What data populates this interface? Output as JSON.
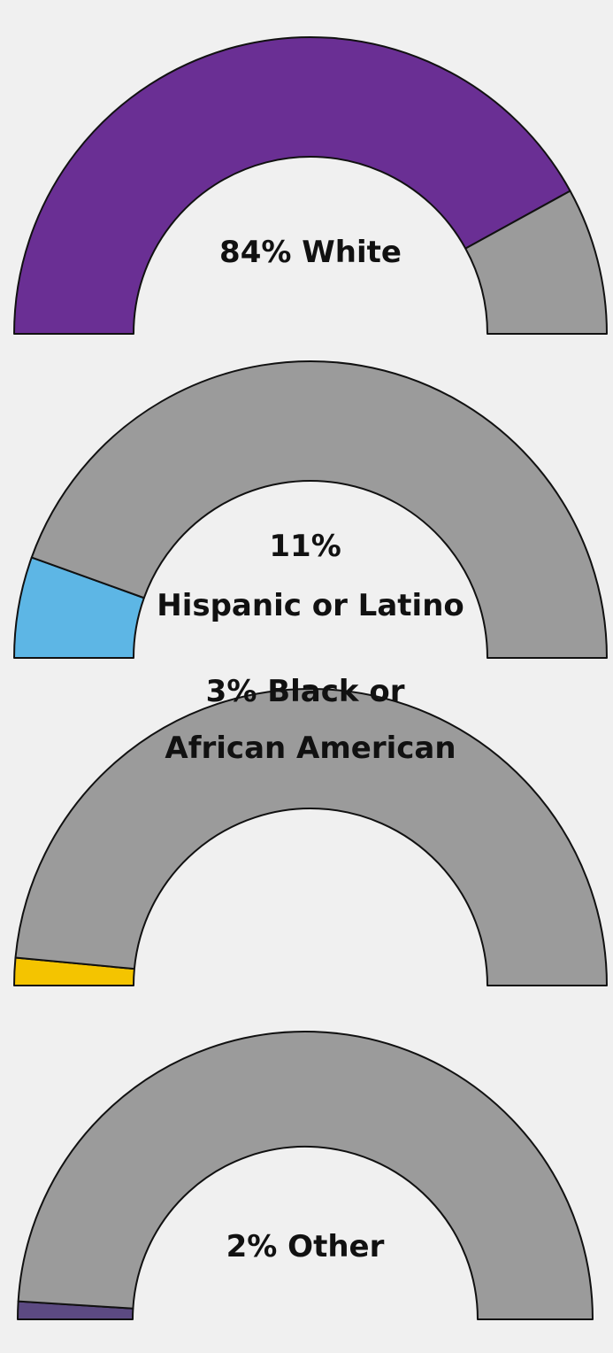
{
  "chart_data": [
    {
      "type": "gauge",
      "value": 84,
      "max": 100,
      "label_lines": [
        "84% White"
      ],
      "color": "#6a2f94",
      "remainder_color": "#9b9b9b"
    },
    {
      "type": "gauge",
      "value": 11,
      "max": 100,
      "label_lines": [
        "11%",
        "Hispanic or Latino"
      ],
      "color": "#5db6e5",
      "remainder_color": "#9b9b9b"
    },
    {
      "type": "gauge",
      "value": 3,
      "max": 100,
      "label_lines": [
        "3% Black or",
        "African American"
      ],
      "color": "#f4c400",
      "remainder_color": "#9b9b9b"
    },
    {
      "type": "gauge",
      "value": 2,
      "max": 100,
      "label_lines": [
        "2% Other"
      ],
      "color": "#5c4a82",
      "remainder_color": "#9b9b9b"
    }
  ]
}
